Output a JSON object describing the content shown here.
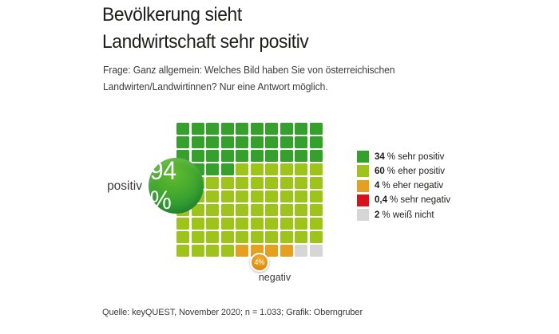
{
  "header": {
    "title_lines": [
      "Bevölkerung sieht",
      "Landwirtschaft sehr positiv"
    ],
    "question_lines": [
      "Frage: Ganz allgemein: Welches Bild haben Sie von österreichischen",
      "Landwirten/Landwirtinnen? Nur eine Antwort möglich."
    ]
  },
  "chart_data": {
    "type": "waffle",
    "title": "Bevölkerung sieht Landwirtschaft sehr positiv",
    "categories": [
      "sehr positiv",
      "eher positiv",
      "eher negativ",
      "sehr negativ",
      "weiß nicht"
    ],
    "values": [
      34,
      60,
      4,
      0.4,
      2
    ],
    "unit": "%",
    "colors": [
      "#35a02c",
      "#9ec41c",
      "#e6a01f",
      "#d6121c",
      "#d6d6d6"
    ],
    "aggregates": {
      "positiv_label": "positiv",
      "positiv_value": "94 %",
      "negativ_label": "negativ",
      "negativ_value": "4%"
    },
    "grid": {
      "rows": [
        "DDDDDDDDDD",
        "DDDDDDDDDD",
        "DDDDDDDDDD",
        "DDDDLLLLLL",
        "LLLLLLLLLL",
        "LLLLLLLLLL",
        "LLLLLLLLLL",
        "LLLLLLLLLL",
        "LLLLLLLLLL",
        "LLLLOOOOGG"
      ],
      "palette": {
        "D": "#35a02c",
        "L": "#9ec41c",
        "O": "#e6a01f",
        "G": "#d6d6d6"
      }
    }
  },
  "legend": {
    "items": [
      {
        "value": "34",
        "label": "% sehr positiv",
        "color": "#35a02c"
      },
      {
        "value": "60",
        "label": "% eher positiv",
        "color": "#9ec41c"
      },
      {
        "value": "4",
        "label": "% eher negativ",
        "color": "#e6a01f"
      },
      {
        "value": "0,4",
        "label": "% sehr negativ",
        "color": "#d6121c"
      },
      {
        "value": "2",
        "label": "% weiß nicht",
        "color": "#d6d6d6"
      }
    ]
  },
  "footer": {
    "source": "Quelle: keyQUEST, November 2020; n = 1.033; Grafik: Oberngruber"
  }
}
